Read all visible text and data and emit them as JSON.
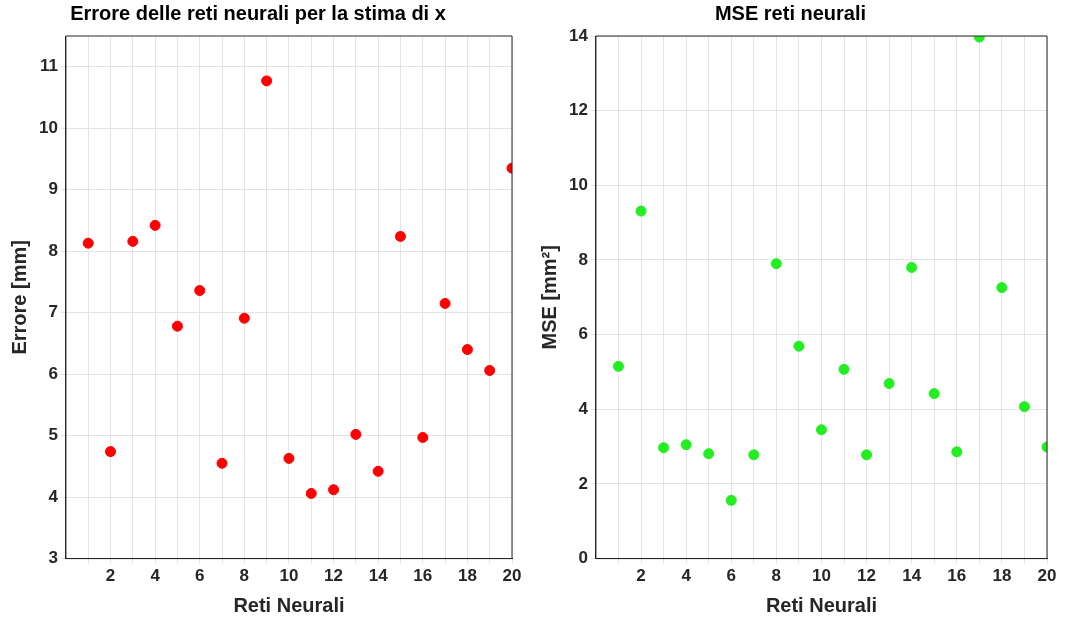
{
  "chart_data": [
    {
      "type": "scatter",
      "title": "Errore delle reti neurali per la stima di x",
      "xlabel": "Reti Neurali",
      "ylabel": "Errore [mm]",
      "x": [
        1,
        2,
        3,
        4,
        5,
        6,
        7,
        8,
        9,
        10,
        11,
        12,
        13,
        14,
        15,
        16,
        17,
        18,
        19,
        20
      ],
      "series": [
        {
          "color": "#ff0000",
          "values": [
            8.13,
            4.74,
            8.16,
            8.42,
            6.78,
            7.36,
            4.55,
            6.91,
            10.77,
            4.63,
            4.06,
            4.12,
            5.02,
            4.42,
            8.24,
            4.97,
            7.15,
            6.4,
            6.06,
            9.35
          ]
        }
      ],
      "xlim": [
        0,
        20
      ],
      "xticks": [
        {
          "value": 1,
          "label": null
        },
        2,
        {
          "value": 3,
          "label": null
        },
        4,
        {
          "value": 5,
          "label": null
        },
        6,
        {
          "value": 7,
          "label": null
        },
        8,
        {
          "value": 9,
          "label": null
        },
        10,
        {
          "value": 11,
          "label": null
        },
        12,
        {
          "value": 13,
          "label": null
        },
        14,
        {
          "value": 15,
          "label": null
        },
        16,
        {
          "value": 17,
          "label": null
        },
        18,
        {
          "value": 19,
          "label": null
        },
        20
      ],
      "ylim": [
        3,
        11.5
      ],
      "yticks": [
        3,
        4,
        5,
        6,
        7,
        8,
        9,
        10,
        11
      ],
      "grid": true,
      "marker": "circle"
    },
    {
      "type": "scatter",
      "title": "MSE reti neurali",
      "xlabel": "Reti Neurali",
      "ylabel": "MSE [mm²]",
      "x": [
        1,
        2,
        3,
        4,
        5,
        6,
        7,
        8,
        9,
        10,
        11,
        12,
        13,
        14,
        15,
        16,
        17,
        18,
        19,
        20
      ],
      "series": [
        {
          "color": "#22ee22",
          "values": [
            5.15,
            9.31,
            2.97,
            3.05,
            2.81,
            1.56,
            2.78,
            7.9,
            5.69,
            3.45,
            5.07,
            2.78,
            4.69,
            7.8,
            4.42,
            2.86,
            13.97,
            7.26,
            4.07,
            2.99
          ]
        }
      ],
      "xlim": [
        0,
        20
      ],
      "xticks": [
        {
          "value": 1,
          "label": null
        },
        2,
        {
          "value": 3,
          "label": null
        },
        4,
        {
          "value": 5,
          "label": null
        },
        6,
        {
          "value": 7,
          "label": null
        },
        8,
        {
          "value": 9,
          "label": null
        },
        10,
        {
          "value": 11,
          "label": null
        },
        12,
        {
          "value": 13,
          "label": null
        },
        14,
        {
          "value": 15,
          "label": null
        },
        16,
        {
          "value": 17,
          "label": null
        },
        18,
        {
          "value": 19,
          "label": null
        },
        20
      ],
      "ylim": [
        0,
        14
      ],
      "yticks": [
        0,
        2,
        4,
        6,
        8,
        10,
        12,
        14
      ],
      "grid": true,
      "marker": "circle"
    }
  ]
}
